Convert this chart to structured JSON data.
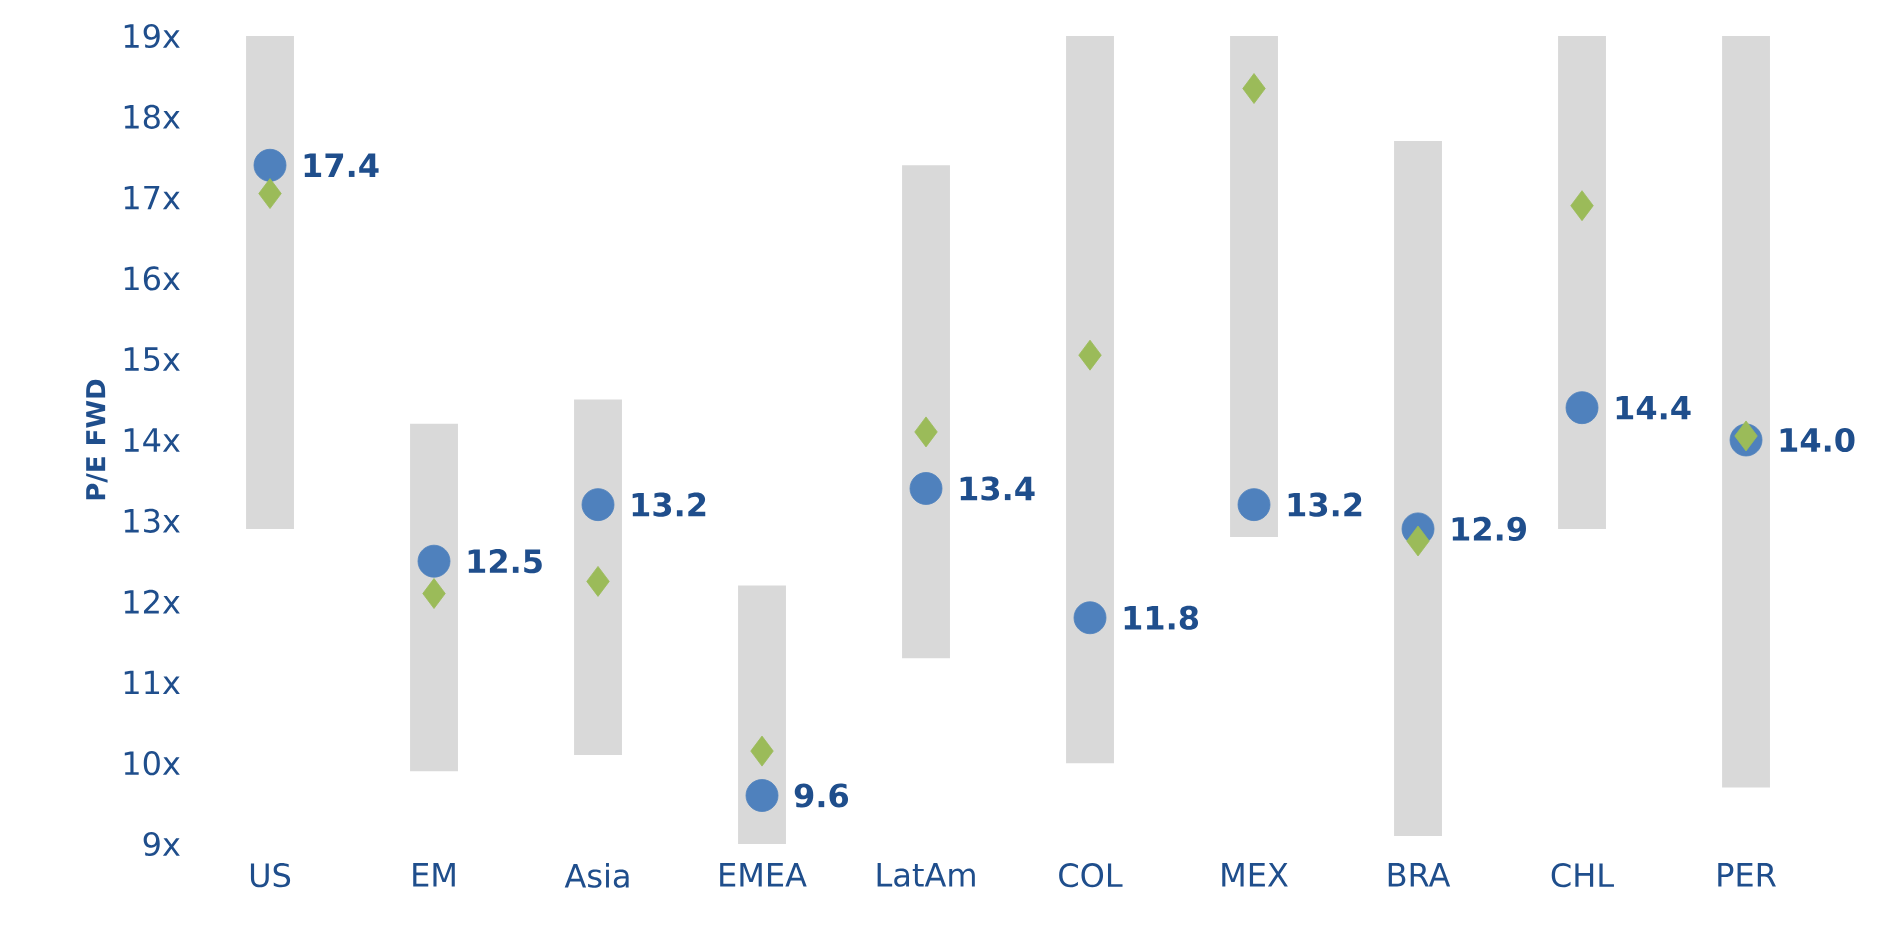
{
  "chart_data": {
    "type": "bar",
    "ylabel": "P/E FWD",
    "categories": [
      "US",
      "EM",
      "Asia",
      "EMEA",
      "LatAm",
      "COL",
      "MEX",
      "BRA",
      "CHL",
      "PER"
    ],
    "ylim": [
      9,
      19
    ],
    "yticks": [
      {
        "value": 9,
        "label": "9x"
      },
      {
        "value": 10,
        "label": "10x"
      },
      {
        "value": 11,
        "label": "11x"
      },
      {
        "value": 12,
        "label": "12x"
      },
      {
        "value": 13,
        "label": "13x"
      },
      {
        "value": 14,
        "label": "14x"
      },
      {
        "value": 15,
        "label": "15x"
      },
      {
        "value": 16,
        "label": "16x"
      },
      {
        "value": 17,
        "label": "17x"
      },
      {
        "value": 18,
        "label": "18x"
      },
      {
        "value": 19,
        "label": "19x"
      }
    ],
    "series": [
      {
        "color": "#d9d9d9",
        "base": [
          12.9,
          9.9,
          10.1,
          9.0,
          11.3,
          10.0,
          12.8,
          9.1,
          12.9,
          9.7
        ],
        "values": [
          6.1,
          4.3,
          4.4,
          3.2,
          6.1,
          9.0,
          6.2,
          8.6,
          6.1,
          9.3
        ]
      },
      {
        "type": "scatter",
        "marker": "circle",
        "color": "#4f81bd",
        "x": [
          "US",
          "EM",
          "Asia",
          "EMEA",
          "LatAm",
          "COL",
          "MEX",
          "BRA",
          "CHL",
          "PER"
        ],
        "values": [
          17.4,
          12.5,
          13.2,
          9.6,
          13.4,
          11.8,
          13.2,
          12.9,
          14.4,
          14.0
        ],
        "value_labels": [
          "17.4",
          "12.5",
          "13.2",
          "9.6",
          "13.4",
          "11.8",
          "13.2",
          "12.9",
          "14.4",
          "14.0"
        ]
      },
      {
        "type": "scatter",
        "marker": "diamond",
        "color": "#9bbb59",
        "x": [
          "US",
          "EM",
          "Asia",
          "EMEA",
          "LatAm",
          "COL",
          "MEX",
          "BRA",
          "CHL",
          "PER"
        ],
        "values": [
          17.05,
          12.1,
          12.25,
          10.15,
          14.1,
          15.05,
          18.35,
          12.75,
          16.9,
          14.05
        ]
      }
    ]
  }
}
